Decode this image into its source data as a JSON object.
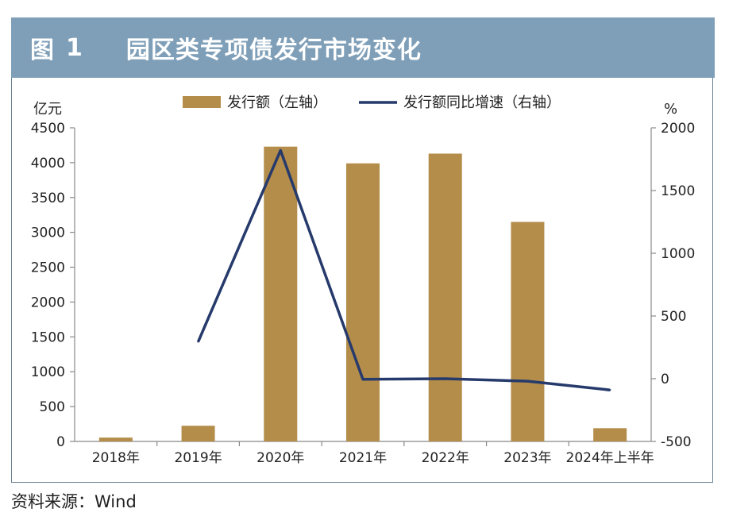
{
  "header": {
    "figure_label": "图",
    "figure_number": "1",
    "title": "园区类专项债发行市场变化"
  },
  "source_text": "资料来源：Wind",
  "colors": {
    "bar": "#b48d4a",
    "line": "#263a6b",
    "header_bg": "#7f9fb8"
  },
  "chart_data": {
    "type": "bar",
    "categories": [
      "2018年",
      "2019年",
      "2020年",
      "2021年",
      "2022年",
      "2023年",
      "2024年上半年"
    ],
    "series": [
      {
        "name": "发行额（左轴）",
        "type": "bar",
        "axis": "left",
        "values": [
          55,
          225,
          4230,
          3990,
          4130,
          3150,
          190
        ]
      },
      {
        "name": "发行额同比增速（右轴）",
        "type": "line",
        "axis": "right",
        "values": [
          null,
          295,
          1820,
          -5,
          0,
          -20,
          -90
        ]
      }
    ],
    "left_axis": {
      "unit": "亿元",
      "ylim": [
        0,
        4500
      ],
      "ticks": [
        0,
        500,
        1000,
        1500,
        2000,
        2500,
        3000,
        3500,
        4000,
        4500
      ]
    },
    "right_axis": {
      "unit": "%",
      "ylim": [
        -500,
        2000
      ],
      "ticks": [
        -500,
        0,
        500,
        1000,
        1500,
        2000
      ]
    },
    "legend_position": "top",
    "grid": false
  }
}
